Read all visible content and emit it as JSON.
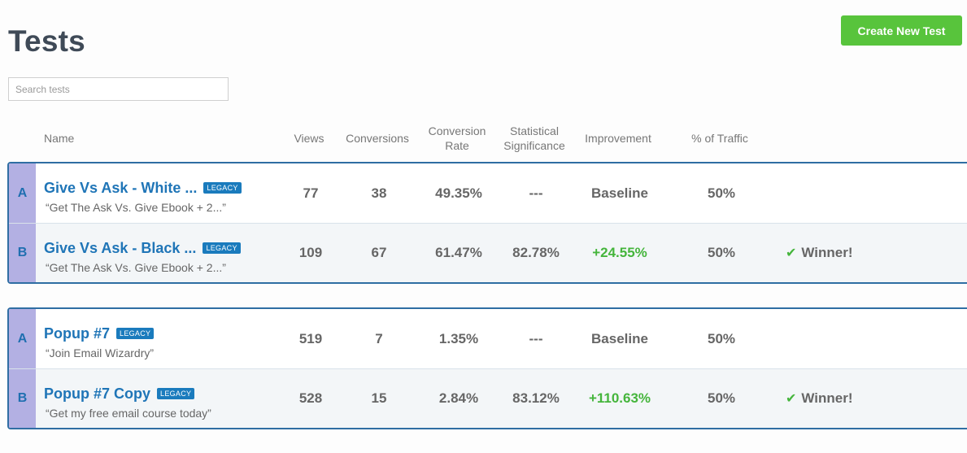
{
  "page": {
    "title": "Tests"
  },
  "toolbar": {
    "create_label": "Create New Test"
  },
  "search": {
    "placeholder": "Search tests",
    "value": ""
  },
  "columns": {
    "name": "Name",
    "views": "Views",
    "conversions": "Conversions",
    "conversion_rate_1": "Conversion",
    "conversion_rate_2": "Rate",
    "significance_1": "Statistical",
    "significance_2": "Significance",
    "improvement": "Improvement",
    "traffic": "% of Traffic"
  },
  "legacy_label": "LEGACY",
  "winner_label": "Winner!",
  "tests": [
    {
      "variants": [
        {
          "letter": "A",
          "name": "Give Vs Ask - White ...",
          "subtitle": "“Get The Ask Vs. Give Ebook + 2...”",
          "views": "77",
          "conversions": "38",
          "rate": "49.35%",
          "significance": "---",
          "improvement": "Baseline",
          "traffic": "50%"
        },
        {
          "letter": "B",
          "name": "Give Vs Ask - Black ...",
          "subtitle": "“Get The Ask Vs. Give Ebook + 2...”",
          "views": "109",
          "conversions": "67",
          "rate": "61.47%",
          "significance": "82.78%",
          "improvement": "+24.55%",
          "traffic": "50%"
        }
      ]
    },
    {
      "variants": [
        {
          "letter": "A",
          "name": "Popup #7",
          "subtitle": "“Join Email Wizardry”",
          "views": "519",
          "conversions": "7",
          "rate": "1.35%",
          "significance": "---",
          "improvement": "Baseline",
          "traffic": "50%"
        },
        {
          "letter": "B",
          "name": "Popup #7 Copy",
          "subtitle": "“Get my free email course today”",
          "views": "528",
          "conversions": "15",
          "rate": "2.84%",
          "significance": "83.12%",
          "improvement": "+110.63%",
          "traffic": "50%"
        }
      ]
    }
  ],
  "colors": {
    "accent_green": "#58c43c",
    "link_blue": "#1f75b7",
    "border_blue": "#2f6ea3",
    "variant_tab": "#b3b0e3"
  }
}
